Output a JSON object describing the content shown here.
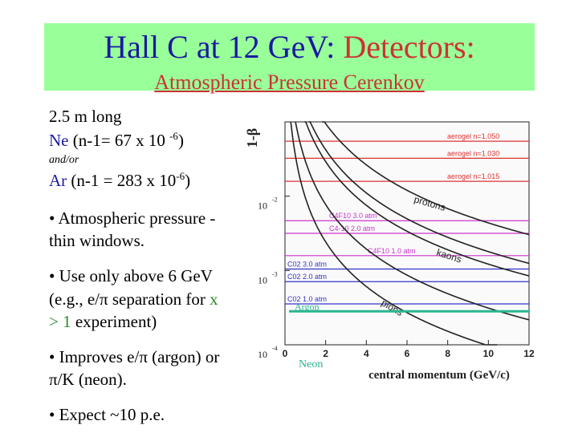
{
  "slide": {
    "title_main": "Hall C at 12 GeV: ",
    "title_accent": "Detectors:",
    "subtitle": "Atmospheric Pressure Cerenkov",
    "colors": {
      "title_bg": "#99ff99",
      "title_blue": "#1a1aa0",
      "title_red": "#cc3333",
      "green": "#2a8a2a"
    }
  },
  "text": {
    "length": "2.5 m long",
    "ne_label": "Ne",
    "ne_formula": " (n-1= 67 x 10 ",
    "ne_exp": "-6",
    "ne_close": ")",
    "andor": "and/or",
    "ar_label": "Ar",
    "ar_formula": " (n-1 = 283 x 10",
    "ar_exp": "-6",
    "ar_close": ")",
    "bullet1_l1": "• Atmospheric pressure -",
    "bullet1_l2": "thin windows.",
    "bullet2_l1a": "• Use only above 6 GeV",
    "bullet2_l2a": "(e.g., e/π separation for ",
    "bullet2_x": "x",
    "bullet2_l3_gt": "> ",
    "bullet2_l3_one": "1",
    "bullet2_l3_rest": " experiment)",
    "bullet3_l1": "• Improves e/π (argon) or",
    "bullet3_l2": "π/K (neon).",
    "bullet4": "• Expect ~10 p.e."
  },
  "chart_data": {
    "type": "line",
    "ylabel": "1-β",
    "xlabel": "central momentum (GeV/c)",
    "xlim": [
      0,
      12
    ],
    "ylim_log10": [
      -4,
      -1
    ],
    "x_ticks": [
      "0",
      "2",
      "4",
      "6",
      "8",
      "10",
      "12"
    ],
    "y_ticks": [
      "10",
      "10",
      "10"
    ],
    "y_tick_exps": [
      "-2",
      "-3",
      "-4"
    ],
    "thresholds": [
      {
        "label": "aerogel n=1.050",
        "log10": -1.26,
        "color": "#dd3333"
      },
      {
        "label": "aerogel n=1.030",
        "log10": -1.49,
        "color": "#dd3333"
      },
      {
        "label": "aerogel n=1.015",
        "log10": -1.8,
        "color": "#dd3333"
      },
      {
        "label": "C4F10 3.0 atm",
        "log10": -2.33,
        "color": "#cc33cc"
      },
      {
        "label": "C4-10 2.0 atm",
        "log10": -2.5,
        "color": "#cc33cc"
      },
      {
        "label": "C4F10 1.0 atm",
        "log10": -2.8,
        "color": "#cc33cc"
      },
      {
        "label": "C02 3.0 atm",
        "log10": -2.98,
        "color": "#3333cc"
      },
      {
        "label": "C02 2.0 atm",
        "log10": -3.15,
        "color": "#3333cc"
      },
      {
        "label": "C02 1.0 atm",
        "log10": -3.45,
        "color": "#3333cc"
      }
    ],
    "particle_curves": [
      {
        "label": "protons",
        "mass": 0.938
      },
      {
        "label": "kaons",
        "mass": 0.494
      },
      {
        "label": "pions",
        "mass": 0.1396
      }
    ],
    "extra_curves": [
      {
        "mass": 0.6
      },
      {
        "mass": 0.25
      }
    ],
    "gas_lines": [
      {
        "label": "Argon",
        "log10": -3.55,
        "color": "#2bb58f"
      },
      {
        "label": "Neon",
        "log10": -4.15,
        "color": "#2bb58f"
      }
    ]
  }
}
